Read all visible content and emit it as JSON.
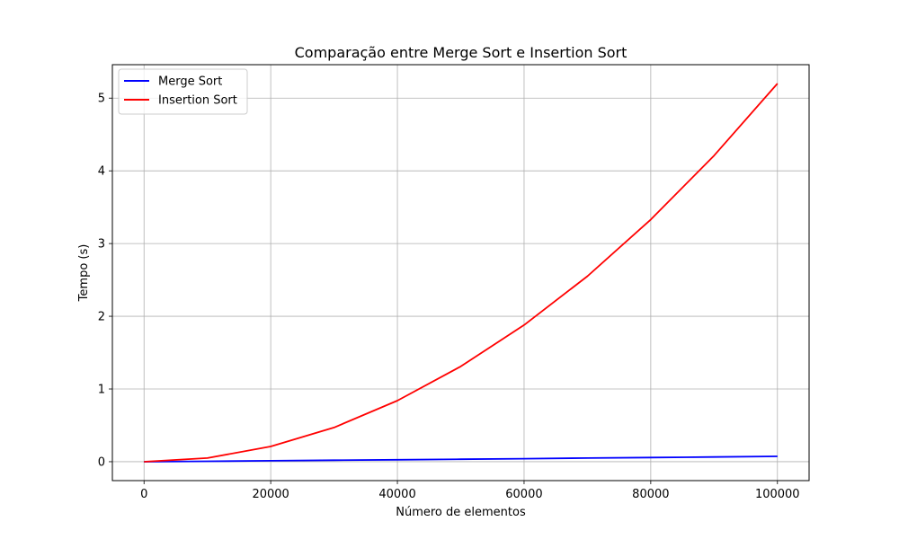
{
  "chart_data": {
    "type": "line",
    "title": "Comparação entre Merge Sort e Insertion Sort",
    "xlabel": "Número de elementos",
    "ylabel": "Tempo (s)",
    "xlim": [
      -5000,
      105000
    ],
    "ylim": [
      -0.26,
      5.46
    ],
    "xticks": [
      0,
      20000,
      40000,
      60000,
      80000,
      100000
    ],
    "yticks": [
      0,
      1,
      2,
      3,
      4,
      5
    ],
    "grid": true,
    "legend_position": "top-left",
    "series": [
      {
        "name": "Merge Sort",
        "color": "#0000ff",
        "x": [
          0,
          10000,
          20000,
          30000,
          40000,
          50000,
          60000,
          70000,
          80000,
          90000,
          100000
        ],
        "values": [
          0.0,
          0.006,
          0.013,
          0.02,
          0.027,
          0.034,
          0.042,
          0.05,
          0.057,
          0.065,
          0.073
        ]
      },
      {
        "name": "Insertion Sort",
        "color": "#ff0000",
        "x": [
          0,
          10000,
          20000,
          30000,
          40000,
          50000,
          60000,
          70000,
          80000,
          90000,
          100000
        ],
        "values": [
          0.0,
          0.05,
          0.21,
          0.47,
          0.84,
          1.31,
          1.88,
          2.55,
          3.33,
          4.21,
          5.2
        ]
      }
    ]
  }
}
